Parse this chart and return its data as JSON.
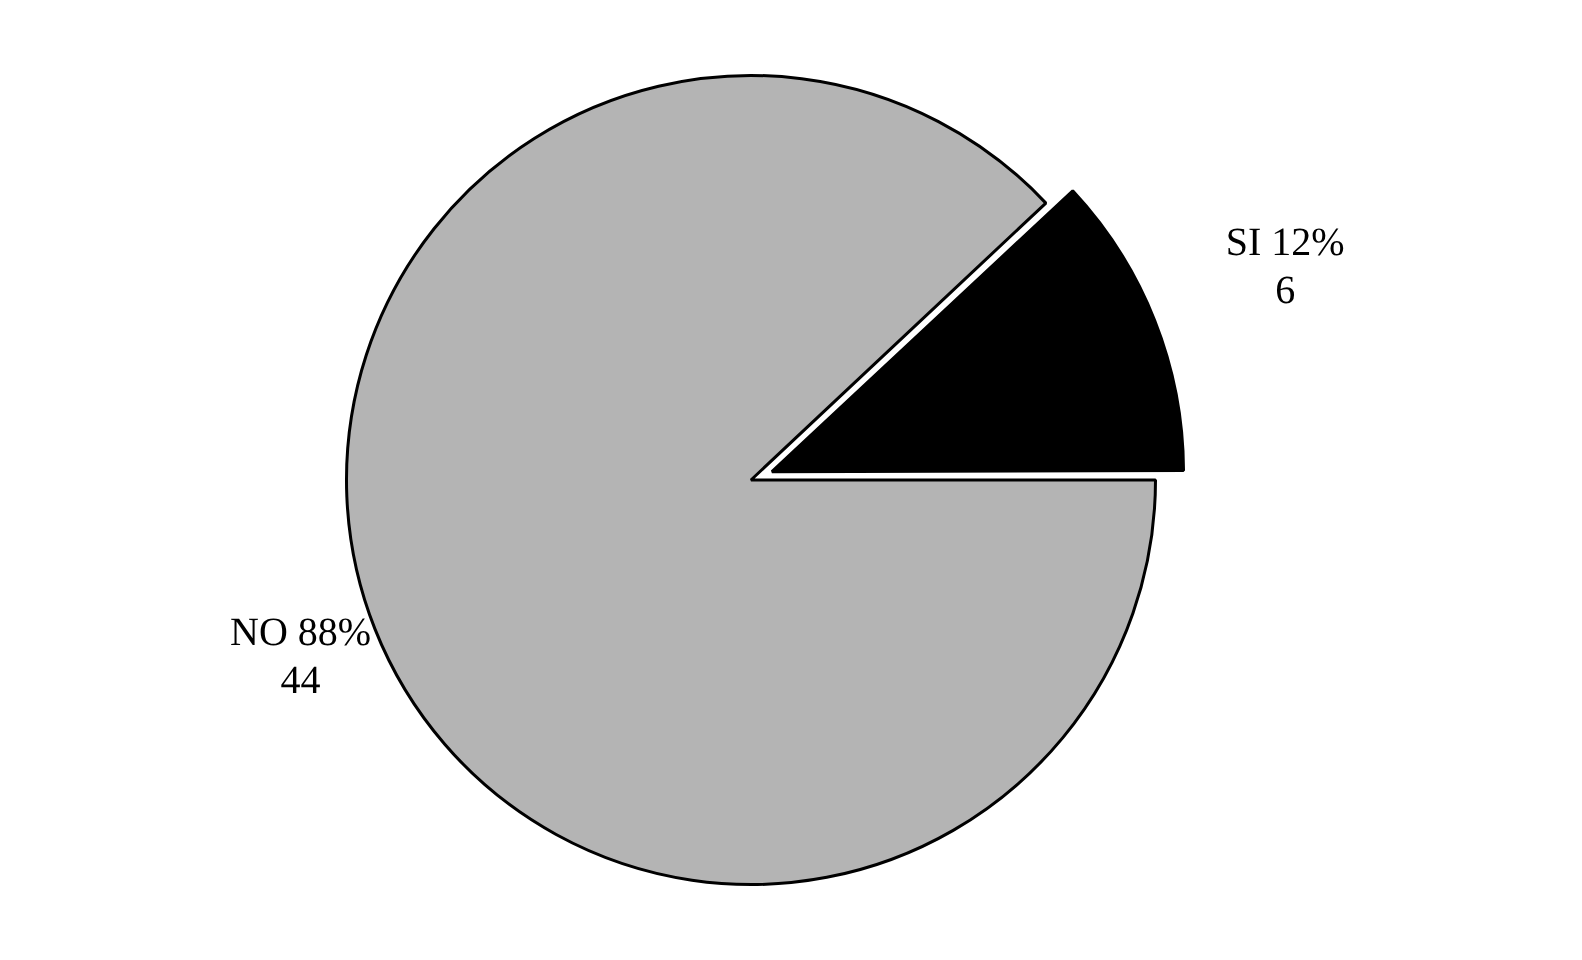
{
  "chart_data": {
    "type": "pie",
    "categories": [
      "SI",
      "NO"
    ],
    "values": [
      12,
      88
    ],
    "colors": [
      "#000000",
      "#b4b4b4"
    ],
    "value_labels": [
      "12%\n6",
      "88%\n44"
    ],
    "legend": false
  }
}
